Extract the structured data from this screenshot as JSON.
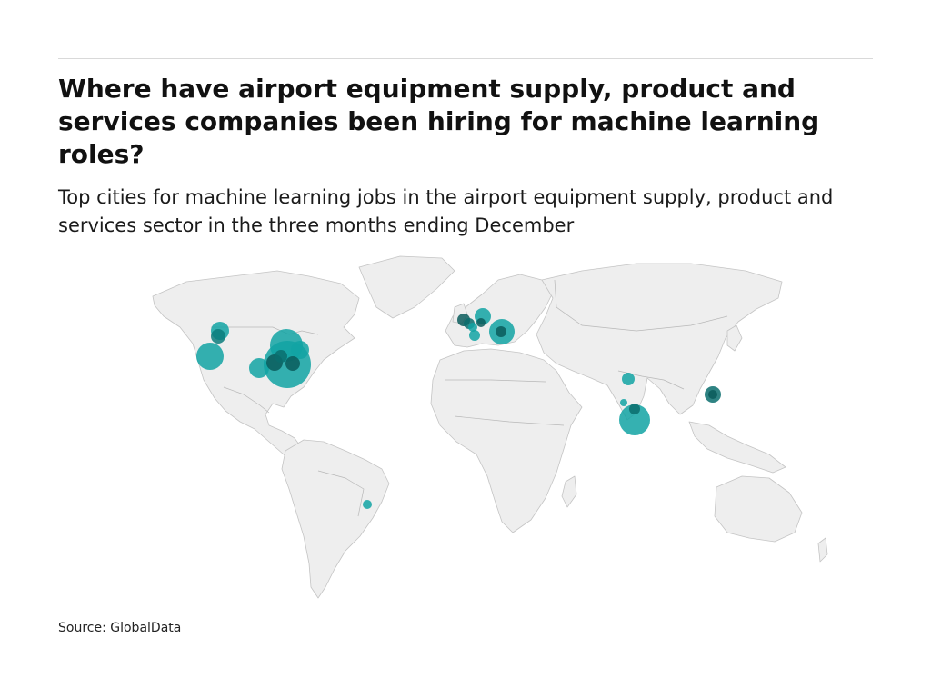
{
  "header": {
    "title": "Where have airport equipment supply, product and services companies been hiring for machine learning roles?",
    "subtitle": "Top cities for machine learning jobs in the airport equipment supply, product and services sector in the three months ending December"
  },
  "footer": {
    "source": "Source: GlobalData"
  },
  "colors": {
    "land": "#eeeeee",
    "border": "#b8b8b8",
    "bubble": "#12a3a3",
    "bubble_dark": "#0b5c5c"
  }
}
